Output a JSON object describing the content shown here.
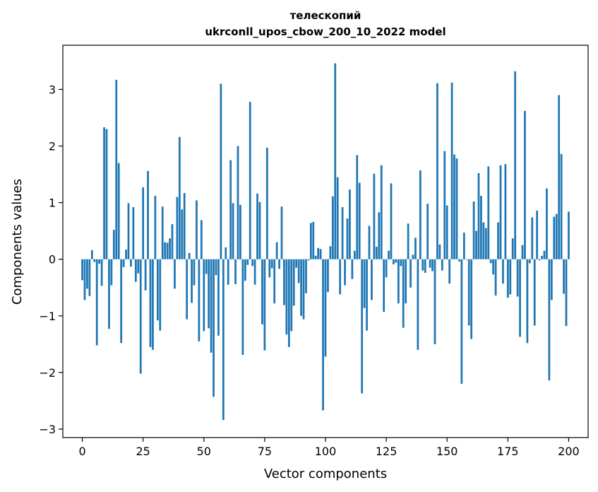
{
  "chart_data": {
    "type": "bar",
    "title_line1": "телескопий",
    "title_line2": "ukrconll_upos_cbow_200_10_2022 model",
    "xlabel": "Vector components",
    "ylabel": "Components values",
    "xlim": [
      -8,
      208
    ],
    "ylim": [
      -3.15,
      3.78
    ],
    "xticks": [
      0,
      25,
      50,
      75,
      100,
      125,
      150,
      175,
      200
    ],
    "yticks": [
      -3,
      -2,
      -1,
      0,
      1,
      2,
      3
    ],
    "ytick_labels": [
      "−3",
      "−2",
      "−1",
      "0",
      "1",
      "2",
      "3"
    ],
    "grid": false,
    "bar_color": "#1f77b4",
    "values": [
      -0.37,
      -0.72,
      -0.52,
      -0.65,
      0.16,
      -0.05,
      -1.52,
      -0.08,
      -0.47,
      2.33,
      2.3,
      -1.23,
      -0.46,
      0.52,
      3.17,
      1.7,
      -1.48,
      -0.14,
      0.17,
      0.99,
      -0.13,
      0.92,
      -0.4,
      -0.25,
      -2.02,
      1.27,
      -0.55,
      1.56,
      -1.55,
      -1.6,
      1.12,
      -1.08,
      -1.26,
      0.93,
      0.3,
      0.29,
      0.37,
      0.62,
      -0.52,
      1.1,
      2.16,
      0.88,
      1.17,
      -1.06,
      0.11,
      -0.77,
      -0.46,
      1.04,
      -1.45,
      0.69,
      -1.27,
      -0.26,
      -1.22,
      -1.65,
      -2.43,
      -0.28,
      -1.35,
      3.1,
      -2.84,
      0.21,
      -0.45,
      1.75,
      0.99,
      -0.44,
      2.0,
      0.96,
      -1.69,
      -0.38,
      -0.1,
      2.78,
      -0.12,
      -0.45,
      1.16,
      1.01,
      -1.15,
      -1.61,
      1.97,
      -0.32,
      -0.16,
      -0.78,
      0.3,
      -0.17,
      0.93,
      -0.81,
      -1.33,
      -1.55,
      -1.27,
      -0.82,
      -0.15,
      -0.42,
      -1.0,
      -1.06,
      -0.6,
      -0.02,
      0.64,
      0.66,
      0.06,
      0.2,
      0.18,
      -2.67,
      -1.72,
      -0.58,
      0.23,
      1.11,
      3.46,
      1.45,
      -0.62,
      0.92,
      -0.46,
      0.72,
      1.23,
      -0.35,
      0.15,
      1.84,
      1.35,
      -2.37,
      -0.86,
      -1.26,
      0.59,
      -0.72,
      1.51,
      0.22,
      0.83,
      1.66,
      -0.93,
      -0.32,
      0.15,
      1.34,
      -0.09,
      -0.06,
      -0.78,
      -0.12,
      -1.21,
      -0.78,
      0.63,
      -0.5,
      0.08,
      0.38,
      -1.6,
      1.57,
      -0.2,
      -0.24,
      0.98,
      -0.15,
      -0.21,
      -1.5,
      3.11,
      0.26,
      -0.2,
      1.91,
      0.95,
      -0.43,
      3.12,
      1.85,
      1.78,
      -0.04,
      -2.2,
      0.47,
      -0.01,
      -1.17,
      -1.41,
      1.02,
      0.5,
      1.52,
      1.12,
      0.65,
      0.55,
      1.64,
      -0.07,
      -0.27,
      -0.64,
      0.65,
      1.66,
      -0.43,
      1.68,
      -0.68,
      -0.62,
      0.37,
      3.32,
      -0.66,
      -1.37,
      0.25,
      2.62,
      -1.48,
      -0.07,
      0.74,
      -1.17,
      0.86,
      -0.02,
      0.06,
      0.15,
      1.25,
      -2.14,
      -0.72,
      0.75,
      0.8,
      2.9,
      1.86,
      -0.61,
      -1.18,
      0.84
    ]
  }
}
